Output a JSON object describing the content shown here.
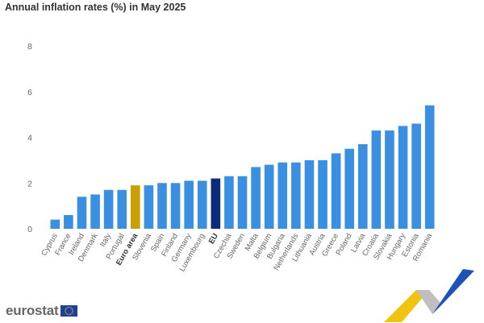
{
  "title": "Annual inflation rates (%) in May 2025",
  "logo": {
    "text": "eurostat",
    "flag_icon": "eu-flag-icon"
  },
  "decoration_icon": "eurostat-arrow-decoration",
  "chart_data": {
    "type": "bar",
    "title": "Annual inflation rates (%) in May 2025",
    "xlabel": "",
    "ylabel": "",
    "ylim": [
      0,
      8
    ],
    "yticks": [
      0,
      2,
      4,
      6,
      8
    ],
    "grid": false,
    "legend": "none",
    "categories": [
      "Cyprus",
      "France",
      "Ireland",
      "Denmark",
      "Italy",
      "Portugal",
      "Euro area",
      "Slovenia",
      "Spain",
      "Finland",
      "Germany",
      "Luxembourg",
      "EU",
      "Czechia",
      "Sweden",
      "Malta",
      "Belgium",
      "Bulgaria",
      "Netherlands",
      "Lithuania",
      "Austria",
      "Greece",
      "Poland",
      "Latvia",
      "Croatia",
      "Slovakia",
      "Hungary",
      "Estonia",
      "Romania"
    ],
    "values": [
      0.4,
      0.6,
      1.4,
      1.5,
      1.7,
      1.7,
      1.9,
      1.9,
      2.0,
      2.0,
      2.1,
      2.1,
      2.2,
      2.3,
      2.3,
      2.7,
      2.8,
      2.9,
      2.9,
      3.0,
      3.0,
      3.3,
      3.5,
      3.7,
      4.3,
      4.3,
      4.5,
      4.6,
      5.4
    ],
    "colors": {
      "default": "#3b8fe0",
      "Euro area": "#c9a000",
      "EU": "#0c2b7a"
    },
    "bold_categories": [
      "Euro area",
      "EU"
    ]
  }
}
